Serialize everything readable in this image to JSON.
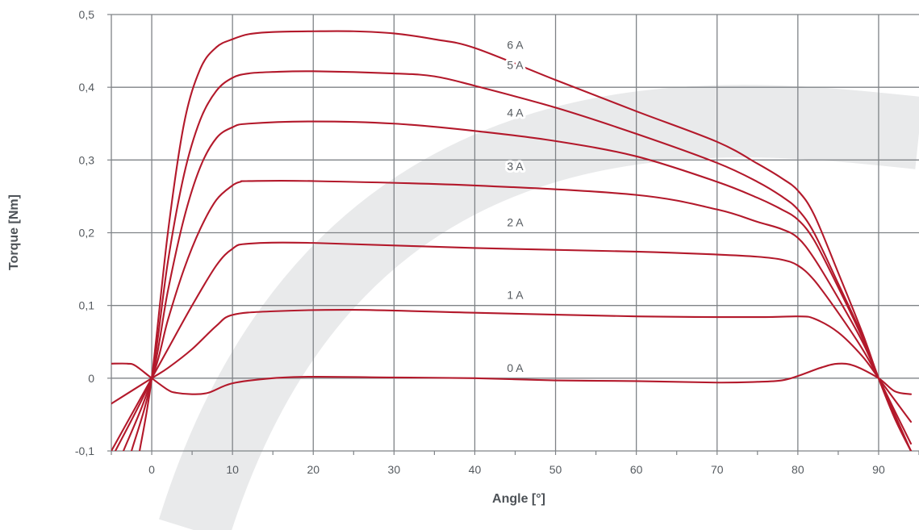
{
  "chart_data": {
    "type": "line",
    "xlabel": "Angle [°]",
    "ylabel": "Torque [Nm]",
    "xlim": [
      -5,
      95
    ],
    "ylim": [
      -0.1,
      0.5
    ],
    "x_ticks": [
      0,
      10,
      20,
      30,
      40,
      50,
      60,
      70,
      80,
      90
    ],
    "y_ticks": [
      -0.1,
      0,
      0.1,
      0.2,
      0.3,
      0.4,
      0.5
    ],
    "x_tick_labels": [
      "0",
      "10",
      "20",
      "30",
      "40",
      "50",
      "60",
      "70",
      "80",
      "90"
    ],
    "y_tick_labels": [
      "-0,1",
      "0",
      "0,1",
      "0,2",
      "0,3",
      "0,4",
      "0,5"
    ],
    "grid": true,
    "line_color": "#b3192b",
    "grid_color": "#7f8387",
    "watermark_color": "#e9eaeb",
    "series": [
      {
        "name": "0 A",
        "label_at": [
          45,
          0.0
        ],
        "x": [
          -5,
          -3,
          -2,
          0,
          2,
          3,
          5,
          7,
          10,
          15,
          20,
          30,
          40,
          50,
          60,
          70,
          75,
          78,
          80,
          83,
          85,
          87,
          90,
          92,
          94
        ],
        "y": [
          0.02,
          0.02,
          0.017,
          0.0,
          -0.016,
          -0.02,
          -0.022,
          -0.02,
          -0.007,
          0.0,
          0.002,
          0.001,
          0.0,
          -0.003,
          -0.004,
          -0.006,
          -0.005,
          -0.003,
          0.003,
          0.015,
          0.02,
          0.017,
          0.0,
          -0.018,
          -0.022
        ]
      },
      {
        "name": "1 A",
        "label_at": [
          45,
          0.1
        ],
        "x": [
          -5,
          0,
          2,
          5,
          8,
          10,
          15,
          25,
          40,
          60,
          75,
          80,
          82,
          85,
          88,
          90,
          92,
          94
        ],
        "y": [
          -0.035,
          0.0,
          0.014,
          0.04,
          0.072,
          0.087,
          0.092,
          0.094,
          0.09,
          0.085,
          0.084,
          0.085,
          0.082,
          0.063,
          0.03,
          0.0,
          -0.03,
          -0.06
        ]
      },
      {
        "name": "2 A",
        "label_at": [
          45,
          0.2
        ],
        "x": [
          -5,
          0,
          2,
          5,
          8,
          10,
          12,
          20,
          40,
          60,
          70,
          75,
          78,
          80,
          82,
          85,
          88,
          90,
          92,
          94
        ],
        "y": [
          -0.1,
          0.0,
          0.04,
          0.1,
          0.155,
          0.178,
          0.185,
          0.186,
          0.179,
          0.174,
          0.17,
          0.167,
          0.163,
          0.155,
          0.135,
          0.09,
          0.04,
          0.0,
          -0.045,
          -0.09
        ]
      },
      {
        "name": "3 A",
        "label_at": [
          45,
          0.277
        ],
        "x": [
          -4.5,
          0,
          2,
          4,
          6,
          8,
          10,
          11,
          12,
          20,
          40,
          60,
          70,
          75,
          78,
          80,
          82,
          85,
          88,
          90,
          92,
          94
        ],
        "y": [
          -0.1,
          0.0,
          0.08,
          0.15,
          0.205,
          0.245,
          0.265,
          0.27,
          0.271,
          0.271,
          0.265,
          0.252,
          0.232,
          0.215,
          0.205,
          0.193,
          0.165,
          0.11,
          0.05,
          0.0,
          -0.05,
          -0.1
        ]
      },
      {
        "name": "4 A",
        "label_at": [
          45,
          0.351
        ],
        "x": [
          -3.5,
          0,
          2,
          4,
          6,
          8,
          10,
          12,
          20,
          30,
          40,
          50,
          60,
          70,
          75,
          78,
          80,
          82,
          85,
          88,
          90,
          92,
          94
        ],
        "y": [
          -0.1,
          0.0,
          0.12,
          0.22,
          0.29,
          0.33,
          0.345,
          0.35,
          0.353,
          0.35,
          0.34,
          0.326,
          0.305,
          0.27,
          0.248,
          0.232,
          0.218,
          0.19,
          0.125,
          0.055,
          0.0,
          -0.055,
          -0.1
        ]
      },
      {
        "name": "5 A",
        "label_at": [
          45,
          0.416
        ],
        "x": [
          -2.5,
          0,
          2,
          4,
          6,
          8,
          10,
          12,
          15,
          20,
          30,
          35,
          40,
          50,
          60,
          70,
          75,
          78,
          80,
          82,
          85,
          88,
          90,
          92,
          94
        ],
        "y": [
          -0.1,
          0.0,
          0.16,
          0.28,
          0.355,
          0.395,
          0.413,
          0.419,
          0.421,
          0.422,
          0.419,
          0.415,
          0.402,
          0.372,
          0.336,
          0.296,
          0.27,
          0.25,
          0.232,
          0.2,
          0.13,
          0.058,
          0.0,
          -0.055,
          -0.1
        ]
      },
      {
        "name": "6 A",
        "label_at": [
          45,
          0.444
        ],
        "x": [
          -1.5,
          0,
          2,
          4,
          6,
          8,
          10,
          12,
          15,
          20,
          25,
          30,
          35,
          40,
          50,
          60,
          70,
          75,
          78,
          80,
          82,
          85,
          88,
          90,
          92,
          94
        ],
        "y": [
          -0.1,
          0.0,
          0.2,
          0.35,
          0.425,
          0.455,
          0.466,
          0.473,
          0.476,
          0.477,
          0.477,
          0.474,
          0.466,
          0.454,
          0.41,
          0.367,
          0.325,
          0.295,
          0.275,
          0.258,
          0.225,
          0.145,
          0.062,
          0.0,
          -0.055,
          -0.1
        ]
      }
    ]
  }
}
